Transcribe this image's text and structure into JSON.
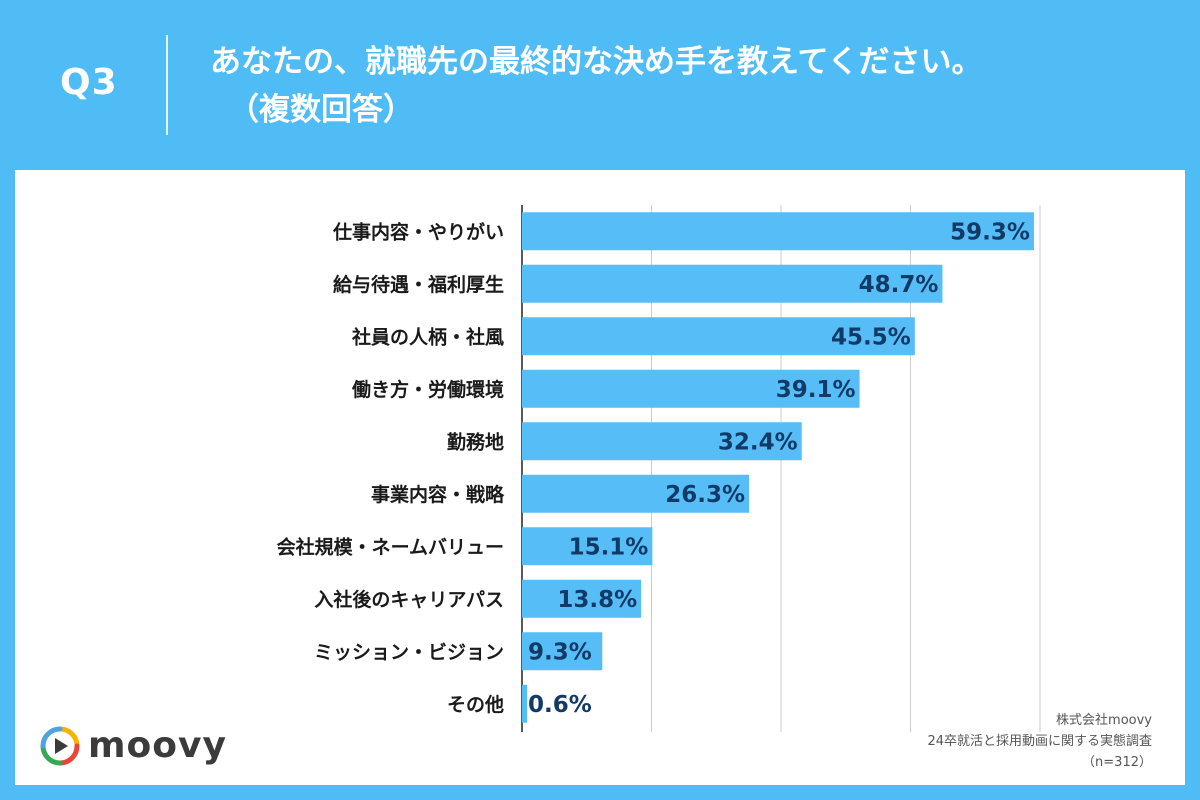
{
  "header": {
    "q_label": "Q3",
    "title_line1": "あなたの、就職先の最終的な決め手を教えてください。",
    "title_line2": "（複数回答）"
  },
  "colors": {
    "background": "#4fbcf5",
    "bar": "#56bdf6",
    "value_text": "#123a66",
    "grid": "#cccccc"
  },
  "chart_data": {
    "type": "bar",
    "orientation": "horizontal",
    "categories": [
      "仕事内容・やりがい",
      "給与待遇・福利厚生",
      "社員の人柄・社風",
      "働き方・労働環境",
      "勤務地",
      "事業内容・戦略",
      "会社規模・ネームバリュー",
      "入社後のキャリアパス",
      "ミッション・ビジョン",
      "その他"
    ],
    "values": [
      59.3,
      48.7,
      45.5,
      39.1,
      32.4,
      26.3,
      15.1,
      13.8,
      9.3,
      0.6
    ],
    "value_labels": [
      "59.3%",
      "48.7%",
      "45.5%",
      "39.1%",
      "32.4%",
      "26.3%",
      "15.1%",
      "13.8%",
      "9.3%",
      "0.6%"
    ],
    "xlim": [
      0,
      60
    ],
    "grid": true
  },
  "logo": {
    "text": "moovy",
    "icon": "play-circle-icon"
  },
  "source": {
    "company": "株式会社moovy",
    "survey": "24卒就活と採用動画に関する実態調査",
    "sample": "（n=312）"
  }
}
